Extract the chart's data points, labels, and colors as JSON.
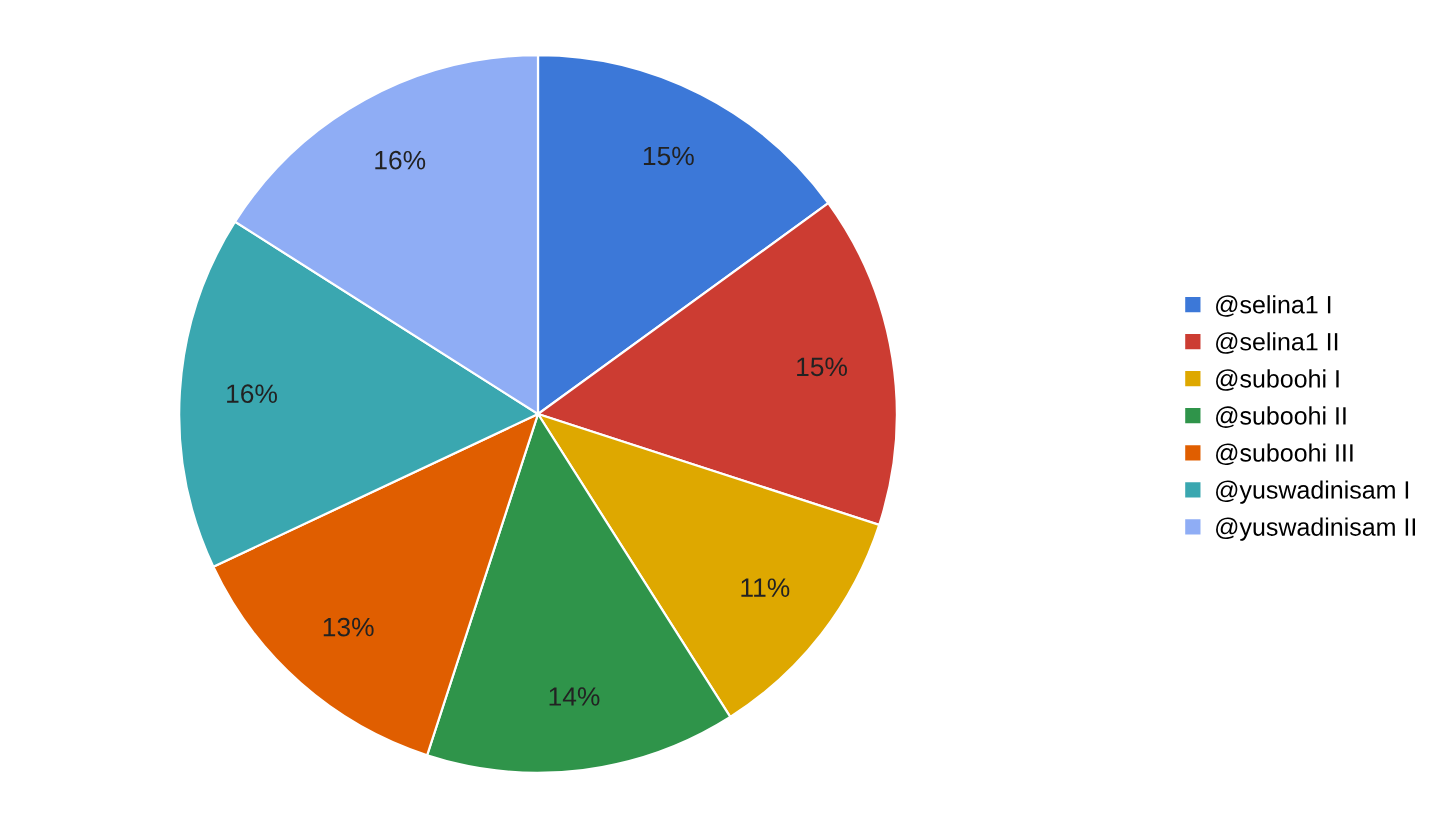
{
  "chart_data": {
    "type": "pie",
    "categories": [
      "@selina1 I",
      "@selina1 II",
      "@suboohi I",
      "@suboohi II",
      "@suboohi III",
      "@yuswadinisam I",
      "@yuswadinisam II"
    ],
    "values": [
      15,
      15,
      11,
      14,
      13,
      16,
      16
    ],
    "value_labels": [
      "15%",
      "15%",
      "11%",
      "14%",
      "13%",
      "16%",
      "16%"
    ],
    "colors": [
      "#3c78d8",
      "#cc3c32",
      "#dea800",
      "#2f944a",
      "#e05e00",
      "#3aa7b0",
      "#8fadf5"
    ],
    "legend": "right"
  }
}
